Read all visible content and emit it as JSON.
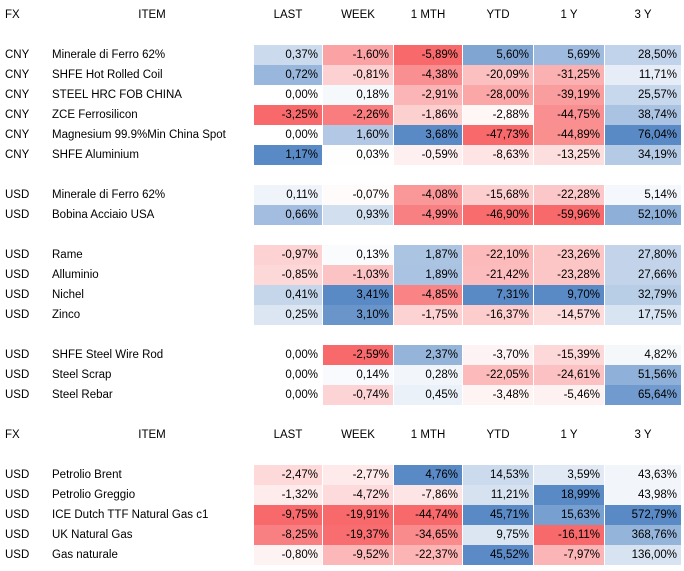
{
  "columns": [
    "FX",
    "ITEM",
    "LAST",
    "WEEK",
    "1 MTH",
    "YTD",
    "1 Y",
    "3 Y"
  ],
  "colors": {
    "negative": "#f8696b",
    "positive": "#5a8ac6",
    "neutral": "#ffffff"
  },
  "sections": [
    {
      "header_top": 5,
      "rows_top": 45,
      "rows": [
        {
          "fx": "CNY",
          "item": "Minerale di Ferro 62%",
          "last": "0,37%",
          "week": "-1,60%",
          "mth": "-5,89%",
          "ytd": "5,60%",
          "y1": "5,69%",
          "y3": "28,50%"
        },
        {
          "fx": "CNY",
          "item": "SHFE Hot Rolled Coil",
          "last": "0,72%",
          "week": "-0,81%",
          "mth": "-4,38%",
          "ytd": "-20,09%",
          "y1": "-31,25%",
          "y3": "11,71%"
        },
        {
          "fx": "CNY",
          "item": "STEEL HRC FOB CHINA",
          "last": "0,00%",
          "week": "0,18%",
          "mth": "-2,91%",
          "ytd": "-28,00%",
          "y1": "-39,19%",
          "y3": "25,57%"
        },
        {
          "fx": "CNY",
          "item": "ZCE Ferrosilicon",
          "last": "-3,25%",
          "week": "-2,26%",
          "mth": "-1,86%",
          "ytd": "-2,88%",
          "y1": "-44,75%",
          "y3": "38,74%"
        },
        {
          "fx": "CNY",
          "item": "Magnesium 99.9%Min China Spot",
          "last": "0,00%",
          "week": "1,60%",
          "mth": "3,68%",
          "ytd": "-47,73%",
          "y1": "-44,89%",
          "y3": "76,04%"
        },
        {
          "fx": "CNY",
          "item": "SHFE Aluminium",
          "last": "1,17%",
          "week": "0,03%",
          "mth": "-0,59%",
          "ytd": "-8,63%",
          "y1": "-13,25%",
          "y3": "34,19%"
        },
        null,
        {
          "fx": "USD",
          "item": "Minerale di Ferro 62%",
          "last": "0,11%",
          "week": "-0,07%",
          "mth": "-4,08%",
          "ytd": "-15,68%",
          "y1": "-22,28%",
          "y3": "5,14%"
        },
        {
          "fx": "USD",
          "item": "Bobina Acciaio USA",
          "last": "0,66%",
          "week": "0,93%",
          "mth": "-4,99%",
          "ytd": "-46,90%",
          "y1": "-59,96%",
          "y3": "52,10%"
        },
        null,
        {
          "fx": "USD",
          "item": "Rame",
          "last": "-0,97%",
          "week": "0,13%",
          "mth": "1,87%",
          "ytd": "-22,10%",
          "y1": "-23,26%",
          "y3": "27,80%"
        },
        {
          "fx": "USD",
          "item": "Alluminio",
          "last": "-0,85%",
          "week": "-1,03%",
          "mth": "1,89%",
          "ytd": "-21,42%",
          "y1": "-23,28%",
          "y3": "27,66%"
        },
        {
          "fx": "USD",
          "item": "Nichel",
          "last": "0,41%",
          "week": "3,41%",
          "mth": "-4,85%",
          "ytd": "7,31%",
          "y1": "9,70%",
          "y3": "32,79%"
        },
        {
          "fx": "USD",
          "item": "Zinco",
          "last": "0,25%",
          "week": "3,10%",
          "mth": "-1,75%",
          "ytd": "-16,37%",
          "y1": "-14,57%",
          "y3": "17,75%"
        },
        null,
        {
          "fx": "USD",
          "item": "SHFE Steel Wire Rod",
          "last": "0,00%",
          "week": "-2,59%",
          "mth": "2,37%",
          "ytd": "-3,70%",
          "y1": "-15,39%",
          "y3": "4,82%"
        },
        {
          "fx": "USD",
          "item": "Steel Scrap",
          "last": "0,00%",
          "week": "0,14%",
          "mth": "0,28%",
          "ytd": "-22,05%",
          "y1": "-24,61%",
          "y3": "51,56%"
        },
        {
          "fx": "USD",
          "item": "Steel Rebar",
          "last": "0,00%",
          "week": "-0,74%",
          "mth": "0,45%",
          "ytd": "-3,48%",
          "y1": "-5,46%",
          "y3": "65,64%"
        }
      ]
    },
    {
      "header_top": 425,
      "rows_top": 465,
      "rows": [
        {
          "fx": "USD",
          "item": "Petrolio Brent",
          "last": "-2,47%",
          "week": "-2,77%",
          "mth": "4,76%",
          "ytd": "14,53%",
          "y1": "3,59%",
          "y3": "43,63%"
        },
        {
          "fx": "USD",
          "item": "Petrolio Greggio",
          "last": "-1,32%",
          "week": "-4,72%",
          "mth": "-7,86%",
          "ytd": "11,21%",
          "y1": "18,99%",
          "y3": "43,98%"
        },
        {
          "fx": "USD",
          "item": "ICE Dutch TTF Natural Gas c1",
          "last": "-9,75%",
          "week": "-19,91%",
          "mth": "-44,74%",
          "ytd": "45,71%",
          "y1": "15,63%",
          "y3": "572,79%"
        },
        {
          "fx": "USD",
          "item": "UK Natural Gas",
          "last": "-8,25%",
          "week": "-19,37%",
          "mth": "-34,65%",
          "ytd": "9,75%",
          "y1": "-16,11%",
          "y3": "368,76%"
        },
        {
          "fx": "USD",
          "item": "Gas naturale",
          "last": "-0,80%",
          "week": "-9,52%",
          "mth": "-22,37%",
          "ytd": "45,52%",
          "y1": "-7,97%",
          "y3": "136,00%"
        }
      ]
    }
  ]
}
